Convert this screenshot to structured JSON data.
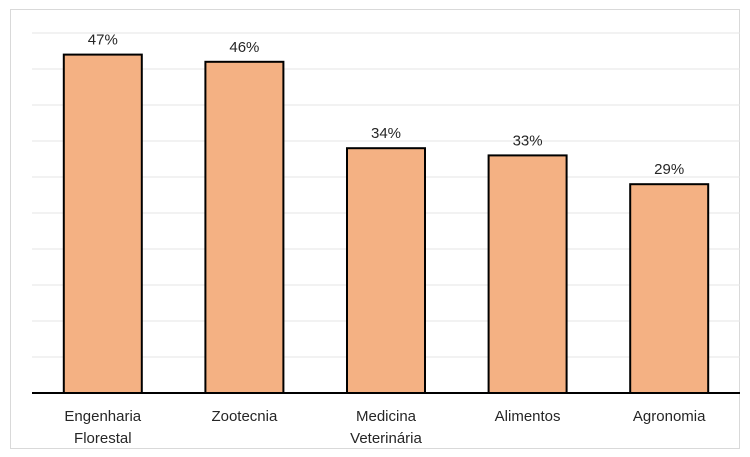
{
  "chart_data": {
    "type": "bar",
    "categories": [
      [
        "Engenharia",
        "Florestal"
      ],
      [
        "Zootecnia"
      ],
      [
        "Medicina",
        "Veterinária"
      ],
      [
        "Alimentos"
      ],
      [
        "Agronomia"
      ]
    ],
    "values": [
      47,
      46,
      34,
      33,
      29
    ],
    "data_labels": [
      "47%",
      "46%",
      "34%",
      "33%",
      "29%"
    ],
    "title": "",
    "xlabel": "",
    "ylabel": "",
    "ylim": [
      0,
      50
    ],
    "grid": true,
    "legend": "none",
    "colors": {
      "bar_fill": "#f4b183",
      "bar_stroke": "#000000",
      "grid": "#e6e6e6",
      "text": "#262626"
    }
  }
}
